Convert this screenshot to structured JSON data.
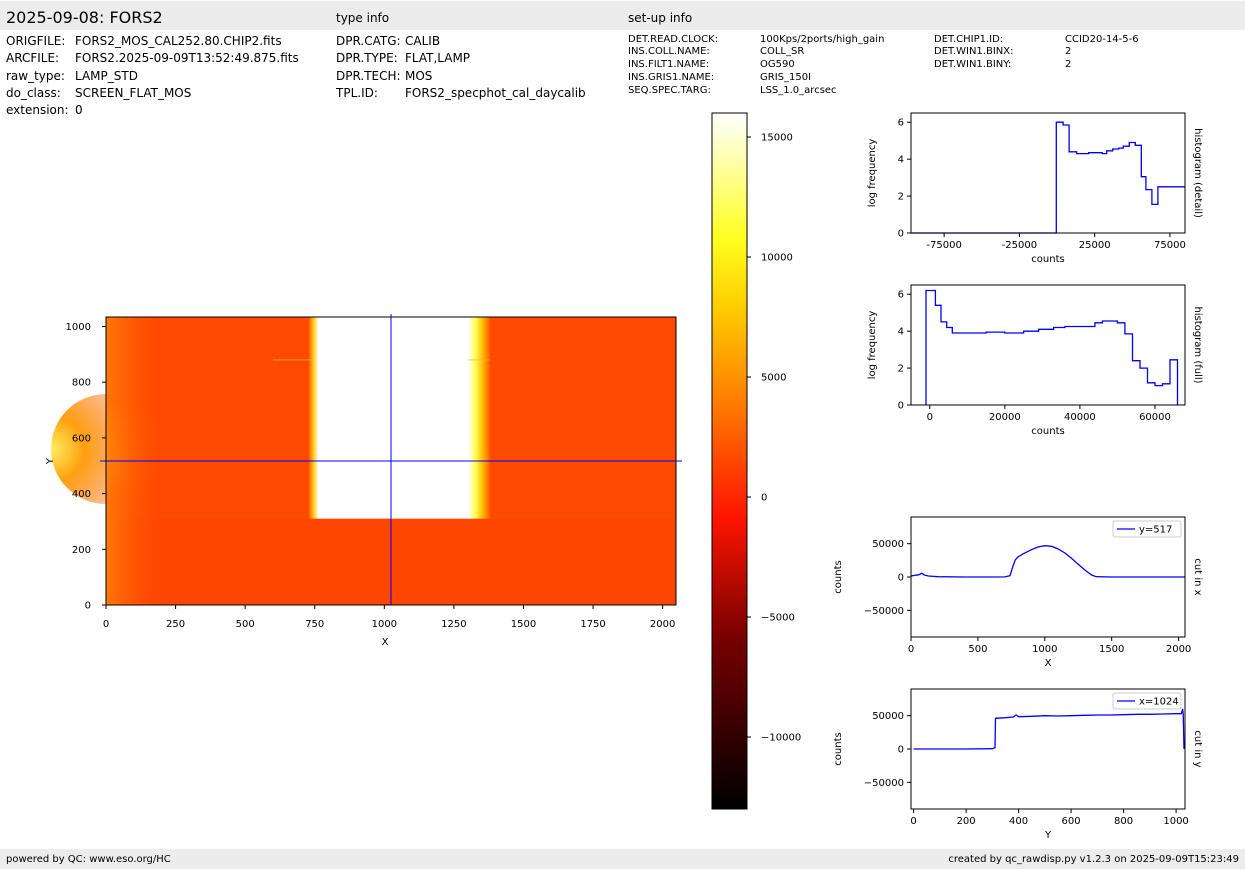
{
  "header": {
    "title": "2025-09-08: FORS2",
    "type_info_heading": "type info",
    "setup_info_heading": "set-up info"
  },
  "file_info": [
    {
      "key": "ORIGFILE:",
      "value": "FORS2_MOS_CAL252.80.CHIP2.fits"
    },
    {
      "key": "ARCFILE:",
      "value": "FORS2.2025-09-09T13:52:49.875.fits"
    },
    {
      "key": "raw_type:",
      "value": "LAMP_STD"
    },
    {
      "key": "do_class:",
      "value": "SCREEN_FLAT_MOS"
    },
    {
      "key": "extension:",
      "value": "0"
    }
  ],
  "type_info": [
    {
      "key": "DPR.CATG:",
      "value": "CALIB"
    },
    {
      "key": "DPR.TYPE:",
      "value": "FLAT,LAMP"
    },
    {
      "key": "DPR.TECH:",
      "value": "MOS"
    },
    {
      "key": "TPL.ID:",
      "value": "FORS2_specphot_cal_daycalib"
    }
  ],
  "setup_info_col1": [
    {
      "key": "DET.READ.CLOCK:",
      "value": "100Kps/2ports/high_gain"
    },
    {
      "key": "INS.COLL.NAME:",
      "value": "COLL_SR"
    },
    {
      "key": "INS.FILT1.NAME:",
      "value": "OG590"
    },
    {
      "key": "INS.GRIS1.NAME:",
      "value": "GRIS_150I"
    },
    {
      "key": "SEQ.SPEC.TARG:",
      "value": "LSS_1.0_arcsec"
    }
  ],
  "setup_info_col2": [
    {
      "key": "DET.CHIP1.ID:",
      "value": "CCID20-14-5-6"
    },
    {
      "key": "DET.WIN1.BINX:",
      "value": "2"
    },
    {
      "key": "DET.WIN1.BINY:",
      "value": "2"
    }
  ],
  "footer": {
    "left": "powered by QC: www.eso.org/HC",
    "right": "created by qc_rawdisp.py v1.2.3 on 2025-09-09T15:23:49"
  },
  "colors": {
    "series": "#0000ff",
    "crosshair": "#0000ff",
    "bar_bg": "#ececec",
    "image_bg": "#ff4a00",
    "saturated": "#ffffff"
  },
  "chart_data": [
    {
      "type": "heatmap",
      "name": "image",
      "xlabel": "X",
      "ylabel": "Y",
      "xlim": [
        0,
        2048
      ],
      "ylim": [
        0,
        1034
      ],
      "xticks": [
        0,
        250,
        500,
        750,
        1000,
        1250,
        1500,
        1750,
        2000
      ],
      "yticks": [
        0,
        200,
        400,
        600,
        800,
        1000
      ],
      "cut_x": 1024,
      "cut_y": 517,
      "colormap": "hot",
      "bright_region": {
        "x": [
          750,
          1380
        ],
        "y": [
          310,
          1034
        ]
      },
      "colorbar": {
        "vmin": -13000,
        "vmax": 16000,
        "ticks": [
          15000,
          10000,
          5000,
          0,
          -5000,
          -10000
        ],
        "tick_labels": [
          "15000",
          "10000",
          "5000",
          "0",
          "−5000",
          "−10000"
        ]
      }
    },
    {
      "type": "line",
      "name": "histogram_detail",
      "side_label": "histogram (detail)",
      "xlabel": "counts",
      "ylabel": "log frequency",
      "xlim": [
        -97000,
        85000
      ],
      "ylim": [
        0,
        6.5
      ],
      "xticks": [
        -75000,
        -25000,
        25000,
        75000
      ],
      "xtick_labels": [
        "-75000",
        "-25000",
        "25000",
        "75000"
      ],
      "yticks": [
        0,
        2,
        4,
        6
      ],
      "step": true,
      "x": [
        -97000,
        -500,
        -500,
        4000,
        4000,
        8000,
        8000,
        13000,
        13000,
        21000,
        21000,
        30000,
        30000,
        33000,
        33000,
        37000,
        37000,
        41000,
        41000,
        44000,
        44000,
        48000,
        48000,
        52000,
        52000,
        56000,
        56000,
        59000,
        59000,
        63000,
        63000,
        67000,
        67000,
        85000
      ],
      "y": [
        0,
        0,
        6.0,
        6.0,
        5.85,
        5.85,
        4.4,
        4.4,
        4.3,
        4.3,
        4.35,
        4.35,
        4.3,
        4.3,
        4.45,
        4.45,
        4.55,
        4.55,
        4.6,
        4.6,
        4.7,
        4.7,
        4.9,
        4.9,
        4.75,
        4.75,
        3.05,
        3.05,
        2.35,
        2.35,
        1.55,
        1.55,
        2.5,
        2.5
      ]
    },
    {
      "type": "line",
      "name": "histogram_full",
      "side_label": "histogram (full)",
      "xlabel": "counts",
      "ylabel": "log frequency",
      "xlim": [
        -5000,
        68000
      ],
      "ylim": [
        0,
        6.5
      ],
      "xticks": [
        0,
        20000,
        40000,
        60000
      ],
      "xtick_labels": [
        "0",
        "20000",
        "40000",
        "60000"
      ],
      "yticks": [
        0,
        2,
        4,
        6
      ],
      "step": true,
      "x": [
        -1000,
        -1000,
        0,
        1500,
        1500,
        3000,
        3000,
        4500,
        4500,
        6000,
        6000,
        15000,
        15000,
        20000,
        20000,
        25000,
        25000,
        29000,
        29000,
        33000,
        33000,
        36000,
        36000,
        44000,
        44000,
        46000,
        46000,
        50000,
        50000,
        52000,
        52000,
        54000,
        54000,
        56000,
        56000,
        58000,
        58000,
        60000,
        60000,
        62000,
        62000,
        64000,
        64000,
        66000,
        66000
      ],
      "y": [
        0,
        6.2,
        6.2,
        6.2,
        5.4,
        5.4,
        4.5,
        4.5,
        4.2,
        4.2,
        3.9,
        3.9,
        3.95,
        3.95,
        3.9,
        3.9,
        4.0,
        4.0,
        4.1,
        4.1,
        4.2,
        4.2,
        4.25,
        4.25,
        4.45,
        4.45,
        4.55,
        4.55,
        4.45,
        4.45,
        3.85,
        3.85,
        2.4,
        2.4,
        2.0,
        2.0,
        1.2,
        1.2,
        1.05,
        1.05,
        1.15,
        1.15,
        2.45,
        2.45,
        0
      ]
    },
    {
      "type": "line",
      "name": "cut_in_x",
      "side_label": "cut in x",
      "legend": "y=517",
      "legend_position": "top-right",
      "xlabel": "X",
      "ylabel": "counts",
      "xlim": [
        0,
        2048
      ],
      "ylim": [
        -90000,
        90000
      ],
      "xticks": [
        0,
        500,
        1000,
        1500,
        2000
      ],
      "yticks": [
        50000,
        0,
        -50000
      ],
      "ytick_labels": [
        "50000",
        "0",
        "−50000"
      ],
      "x": [
        0,
        30,
        60,
        80,
        100,
        130,
        200,
        400,
        600,
        700,
        740,
        760,
        780,
        800,
        840,
        900,
        950,
        1000,
        1050,
        1100,
        1150,
        1200,
        1250,
        1300,
        1350,
        1380,
        1400,
        1450,
        1500,
        1700,
        1900,
        2048
      ],
      "y": [
        1500,
        2500,
        3500,
        5500,
        3000,
        1500,
        500,
        0,
        0,
        200,
        2000,
        15000,
        26000,
        30000,
        35000,
        41000,
        45000,
        47000,
        46000,
        42000,
        36000,
        28000,
        19000,
        10500,
        3000,
        800,
        500,
        200,
        0,
        0,
        0,
        0
      ]
    },
    {
      "type": "line",
      "name": "cut_in_y",
      "side_label": "cut in y",
      "legend": "x=1024",
      "legend_position": "top-right",
      "xlabel": "Y",
      "ylabel": "counts",
      "xlim": [
        -10,
        1034
      ],
      "ylim": [
        -90000,
        90000
      ],
      "xticks": [
        0,
        200,
        400,
        600,
        800,
        1000
      ],
      "yticks": [
        50000,
        0,
        -50000
      ],
      "ytick_labels": [
        "50000",
        "0",
        "−50000"
      ],
      "x": [
        0,
        100,
        200,
        300,
        310,
        312,
        350,
        380,
        390,
        400,
        450,
        500,
        550,
        600,
        650,
        700,
        750,
        800,
        850,
        900,
        950,
        1000,
        1020,
        1025,
        1027,
        1030
      ],
      "y": [
        0,
        0,
        0,
        500,
        2000,
        46000,
        47000,
        48000,
        51000,
        48500,
        49000,
        50000,
        49500,
        50000,
        50500,
        51000,
        51000,
        51500,
        52000,
        52000,
        52500,
        53000,
        53000,
        60000,
        53000,
        0
      ]
    }
  ]
}
